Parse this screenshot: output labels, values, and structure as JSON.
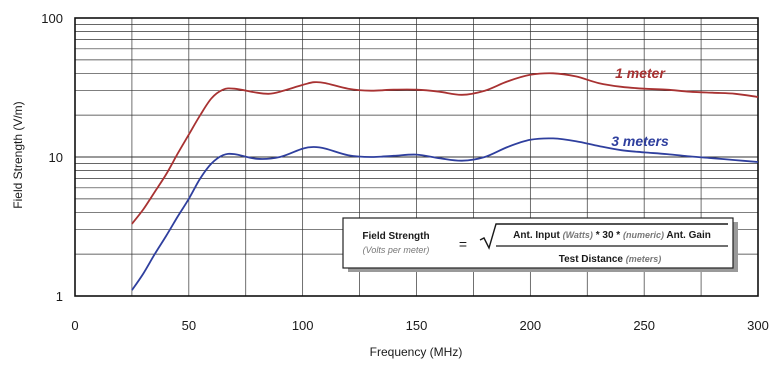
{
  "chart_data": {
    "type": "line",
    "title": "",
    "xlabel": "Frequency (MHz)",
    "ylabel": "Field Strength (V/m)",
    "xlim": [
      0,
      300
    ],
    "ylim": [
      1,
      100
    ],
    "yscale": "log",
    "grid": true,
    "x_ticks": [
      "0",
      "50",
      "100",
      "150",
      "200",
      "250",
      "300"
    ],
    "y_ticks": [
      "1",
      "10",
      "100"
    ],
    "colors": {
      "series_1m": "#a83232",
      "series_3m": "#2f3f9e",
      "grid": "#333333",
      "axes": "#111111"
    },
    "series": [
      {
        "name": "1 meter",
        "x": [
          25,
          30,
          35,
          40,
          45,
          50,
          55,
          60,
          65,
          70,
          80,
          85,
          90,
          100,
          105,
          110,
          120,
          130,
          140,
          150,
          160,
          170,
          180,
          190,
          200,
          210,
          220,
          230,
          240,
          250,
          260,
          270,
          280,
          290,
          300
        ],
        "y": [
          3.3,
          4.2,
          5.6,
          7.5,
          10.5,
          14.5,
          20,
          26.5,
          30.5,
          31,
          29,
          28.5,
          29.5,
          33,
          34.5,
          34,
          31,
          30,
          30.5,
          30.5,
          29.5,
          28,
          30,
          35,
          39,
          40,
          38,
          34,
          32,
          31,
          30.5,
          29.5,
          29,
          28.5,
          27
        ]
      },
      {
        "name": "3 meters",
        "x": [
          25,
          30,
          35,
          40,
          45,
          50,
          55,
          60,
          65,
          70,
          80,
          90,
          100,
          105,
          110,
          120,
          130,
          140,
          150,
          160,
          170,
          180,
          190,
          200,
          210,
          220,
          230,
          240,
          250,
          260,
          270,
          280,
          290,
          300
        ],
        "y": [
          1.1,
          1.45,
          2.0,
          2.7,
          3.7,
          5.0,
          7.0,
          9.0,
          10.3,
          10.5,
          9.7,
          10.0,
          11.5,
          11.8,
          11.5,
          10.3,
          10.0,
          10.2,
          10.4,
          9.8,
          9.4,
          10.0,
          11.8,
          13.3,
          13.6,
          13.0,
          12.0,
          11.2,
          10.8,
          10.5,
          10.1,
          9.8,
          9.5,
          9.2
        ]
      }
    ],
    "formula": {
      "lhs_main": "Field Strength",
      "lhs_sub": "(Volts per meter)",
      "equals": "=",
      "num_1": "Ant. Input ",
      "num_2": "(Watts)",
      "num_3": " * 30 * ",
      "num_4": "(numeric)",
      "num_5": " Ant. Gain",
      "den_1": "Test Distance ",
      "den_2": "(meters)"
    }
  }
}
